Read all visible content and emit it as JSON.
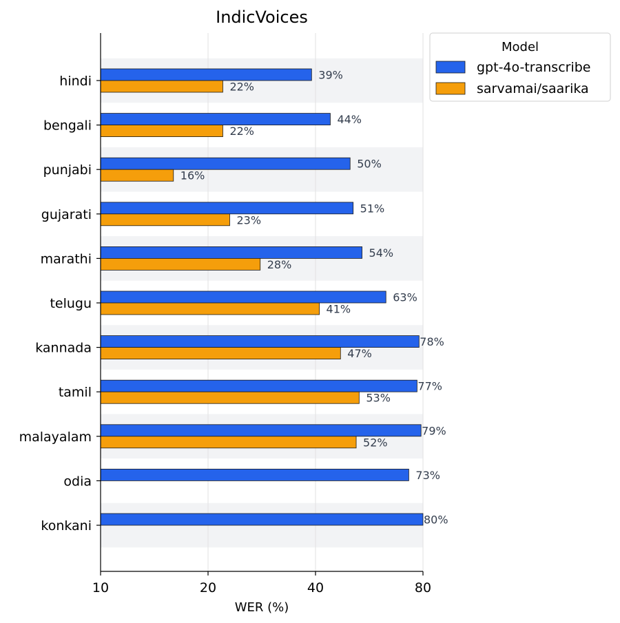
{
  "chart_data": {
    "type": "bar",
    "orientation": "horizontal",
    "title": "IndicVoices",
    "xlabel": "WER (%)",
    "ylabel": "",
    "x_scale": "log",
    "xlim": [
      10,
      80
    ],
    "x_ticks": [
      10,
      20,
      40,
      80
    ],
    "x_tick_labels": [
      "10",
      "20",
      "40",
      "80"
    ],
    "grid": "vertical",
    "categories": [
      "hindi",
      "bengali",
      "punjabi",
      "gujarati",
      "marathi",
      "telugu",
      "kannada",
      "tamil",
      "malayalam",
      "odia",
      "konkani"
    ],
    "legend": {
      "title": "Model",
      "placement": "upper right, outside"
    },
    "series": [
      {
        "name": "gpt-4o-transcribe",
        "color": "#2563eb",
        "values": [
          39,
          44,
          50,
          51,
          54,
          63,
          78,
          77,
          79,
          73,
          80
        ],
        "labels": [
          "39%",
          "44%",
          "50%",
          "51%",
          "54%",
          "63%",
          "78%",
          "77%",
          "79%",
          "73%",
          "80%"
        ]
      },
      {
        "name": "sarvamai/saarika",
        "color": "#f59e0b",
        "values": [
          22,
          22,
          16,
          23,
          28,
          41,
          47,
          53,
          52,
          null,
          null
        ],
        "labels": [
          "22%",
          "22%",
          "16%",
          "23%",
          "28%",
          "41%",
          "47%",
          "53%",
          "52%",
          null,
          null
        ]
      }
    ]
  }
}
